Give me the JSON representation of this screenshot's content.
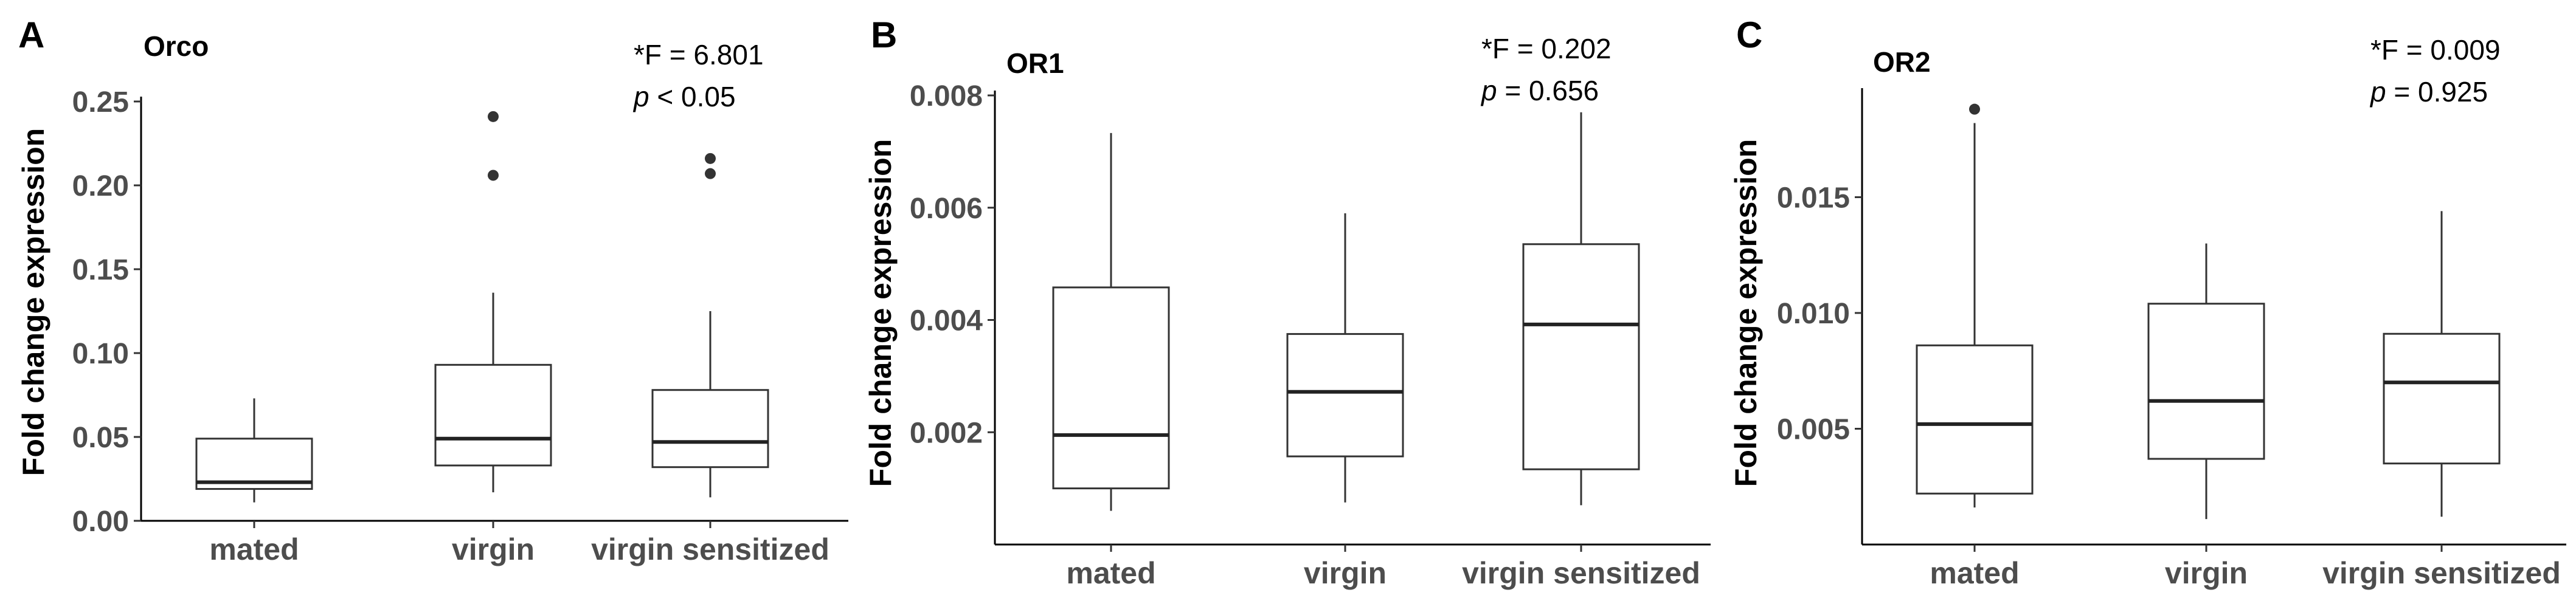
{
  "chart_data": [
    {
      "type": "box",
      "panel": "A",
      "title": "Orco",
      "stat_f": "*F = 6.801",
      "stat_p_symbol": "p",
      "stat_p_rest": " < 0.05",
      "ylabel": "Fold change expression",
      "xlabel": "",
      "ylim": [
        0,
        0.25
      ],
      "yticks": [
        {
          "value": 0.0,
          "label": "0.00"
        },
        {
          "value": 0.05,
          "label": "0.05"
        },
        {
          "value": 0.1,
          "label": "0.10"
        },
        {
          "value": 0.15,
          "label": "0.15"
        },
        {
          "value": 0.2,
          "label": "0.20"
        },
        {
          "value": 0.25,
          "label": "0.25"
        }
      ],
      "grid": false,
      "categories": [
        "mated",
        "virgin",
        "virgin sensitized"
      ],
      "boxes": [
        {
          "category": "mated",
          "min": 0.011,
          "q1": 0.019,
          "median": 0.023,
          "q3": 0.049,
          "max": 0.073,
          "outliers": []
        },
        {
          "category": "virgin",
          "min": 0.017,
          "q1": 0.033,
          "median": 0.049,
          "q3": 0.093,
          "max": 0.136,
          "outliers": [
            0.206,
            0.241
          ]
        },
        {
          "category": "virgin sensitized",
          "min": 0.014,
          "q1": 0.032,
          "median": 0.047,
          "q3": 0.078,
          "max": 0.125,
          "outliers": [
            0.207,
            0.216
          ]
        }
      ]
    },
    {
      "type": "box",
      "panel": "B",
      "title": "OR1",
      "stat_f": "*F = 0.202",
      "stat_p_symbol": "p",
      "stat_p_rest": " = 0.656",
      "ylabel": "Fold change expression",
      "xlabel": "",
      "ylim": [
        0,
        0.008
      ],
      "yticks": [
        {
          "value": 0.002,
          "label": "0.002"
        },
        {
          "value": 0.004,
          "label": "0.004"
        },
        {
          "value": 0.006,
          "label": "0.006"
        },
        {
          "value": 0.008,
          "label": "0.008"
        }
      ],
      "grid": false,
      "categories": [
        "mated",
        "virgin",
        "virgin sensitized"
      ],
      "boxes": [
        {
          "category": "mated",
          "min": 0.0006,
          "q1": 0.001,
          "median": 0.00195,
          "q3": 0.00458,
          "max": 0.00733,
          "outliers": []
        },
        {
          "category": "virgin",
          "min": 0.00075,
          "q1": 0.00157,
          "median": 0.00272,
          "q3": 0.00375,
          "max": 0.0059,
          "outliers": []
        },
        {
          "category": "virgin sensitized",
          "min": 0.0007,
          "q1": 0.00134,
          "median": 0.00392,
          "q3": 0.00535,
          "max": 0.0077,
          "outliers": []
        }
      ]
    },
    {
      "type": "box",
      "panel": "C",
      "title": "OR2",
      "stat_f": "*F = 0.009",
      "stat_p_symbol": "p",
      "stat_p_rest": " = 0.925",
      "ylabel": "Fold change expression",
      "xlabel": "",
      "ylim": [
        0,
        0.0195
      ],
      "yticks": [
        {
          "value": 0.005,
          "label": "0.005"
        },
        {
          "value": 0.01,
          "label": "0.010"
        },
        {
          "value": 0.015,
          "label": "0.015"
        }
      ],
      "grid": false,
      "categories": [
        "mated",
        "virgin",
        "virgin sensitized"
      ],
      "boxes": [
        {
          "category": "mated",
          "min": 0.0016,
          "q1": 0.0022,
          "median": 0.0052,
          "q3": 0.0086,
          "max": 0.0182,
          "outliers": [
            0.0188
          ]
        },
        {
          "category": "virgin",
          "min": 0.0011,
          "q1": 0.0037,
          "median": 0.0062,
          "q3": 0.0104,
          "max": 0.013,
          "outliers": []
        },
        {
          "category": "virgin sensitized",
          "min": 0.0012,
          "q1": 0.0035,
          "median": 0.007,
          "q3": 0.0091,
          "max": 0.0144,
          "outliers": []
        }
      ]
    }
  ]
}
